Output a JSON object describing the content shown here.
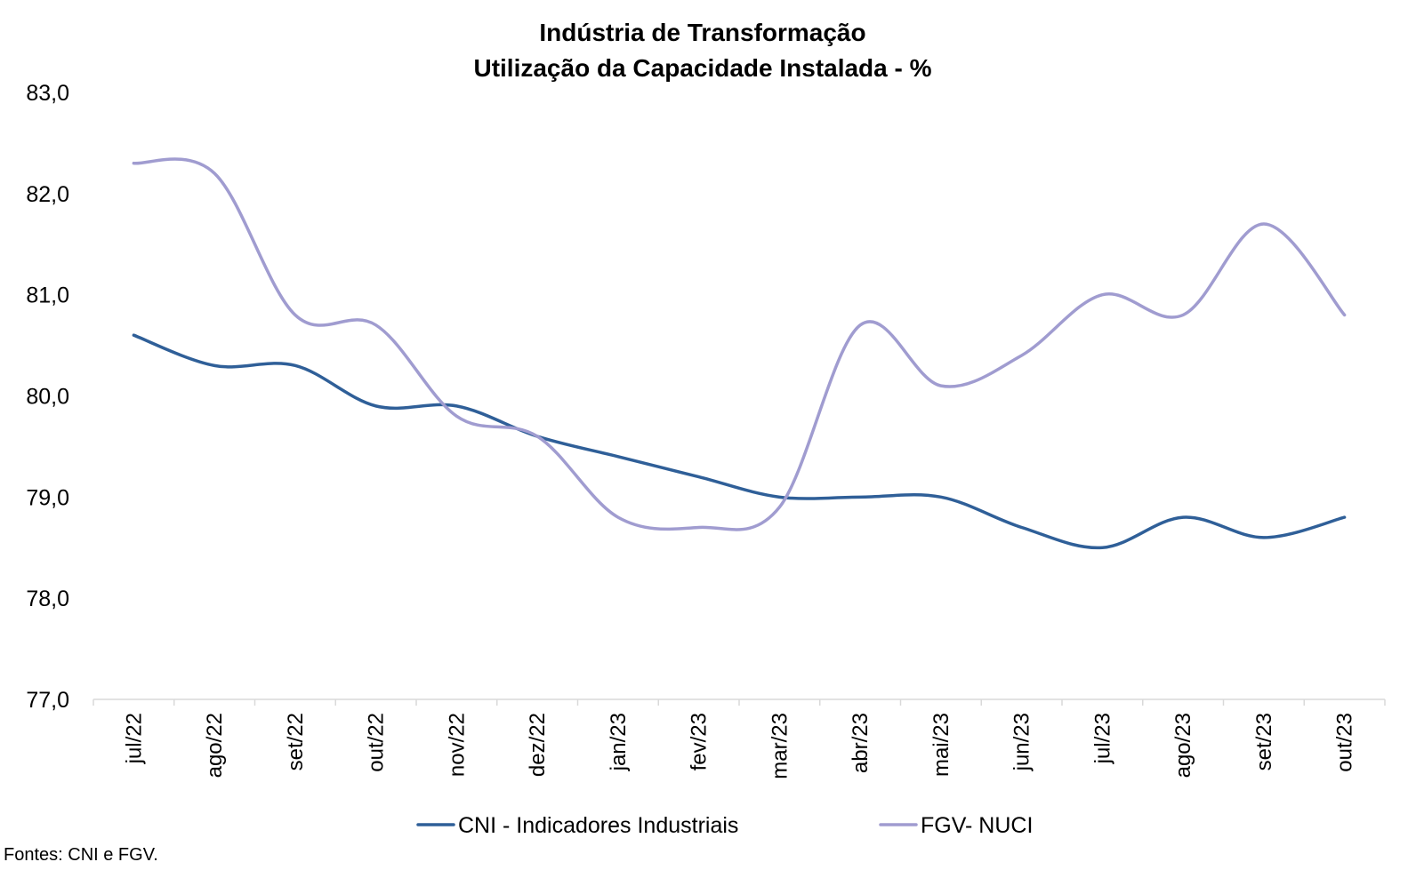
{
  "chart_data": {
    "type": "line",
    "title": "Indústria de Transformação",
    "subtitle": "Utilização da Capacidade Instalada - %",
    "xlabel": "",
    "ylabel": "",
    "categories": [
      "jul/22",
      "ago/22",
      "set/22",
      "out/22",
      "nov/22",
      "dez/22",
      "jan/23",
      "fev/23",
      "mar/23",
      "abr/23",
      "mai/23",
      "jun/23",
      "jul/23",
      "ago/23",
      "set/23",
      "out/23"
    ],
    "ylim": [
      77.0,
      83.0
    ],
    "yticks": [
      {
        "value": 83.0,
        "label": "83,0"
      },
      {
        "value": 82.0,
        "label": "82,0"
      },
      {
        "value": 81.0,
        "label": "81,0"
      },
      {
        "value": 80.0,
        "label": "80,0"
      },
      {
        "value": 79.0,
        "label": "79,0"
      },
      {
        "value": 78.0,
        "label": "78,0"
      },
      {
        "value": 77.0,
        "label": "77,0"
      }
    ],
    "grid": false,
    "legend_position": "bottom",
    "series": [
      {
        "name": "CNI - Indicadores Industriais",
        "color": "#2F5F98",
        "values": [
          80.6,
          80.3,
          80.3,
          79.9,
          79.9,
          79.6,
          79.4,
          79.2,
          79.0,
          79.0,
          79.0,
          78.7,
          78.5,
          78.8,
          78.6,
          78.8
        ]
      },
      {
        "name": "FGV- NUCI",
        "color": "#A09CD0",
        "values": [
          82.3,
          82.2,
          80.8,
          80.7,
          79.8,
          79.6,
          78.8,
          78.7,
          78.9,
          80.7,
          80.1,
          80.4,
          81.0,
          80.8,
          81.7,
          80.8
        ]
      }
    ]
  },
  "source_note": "Fontes: CNI e FGV."
}
